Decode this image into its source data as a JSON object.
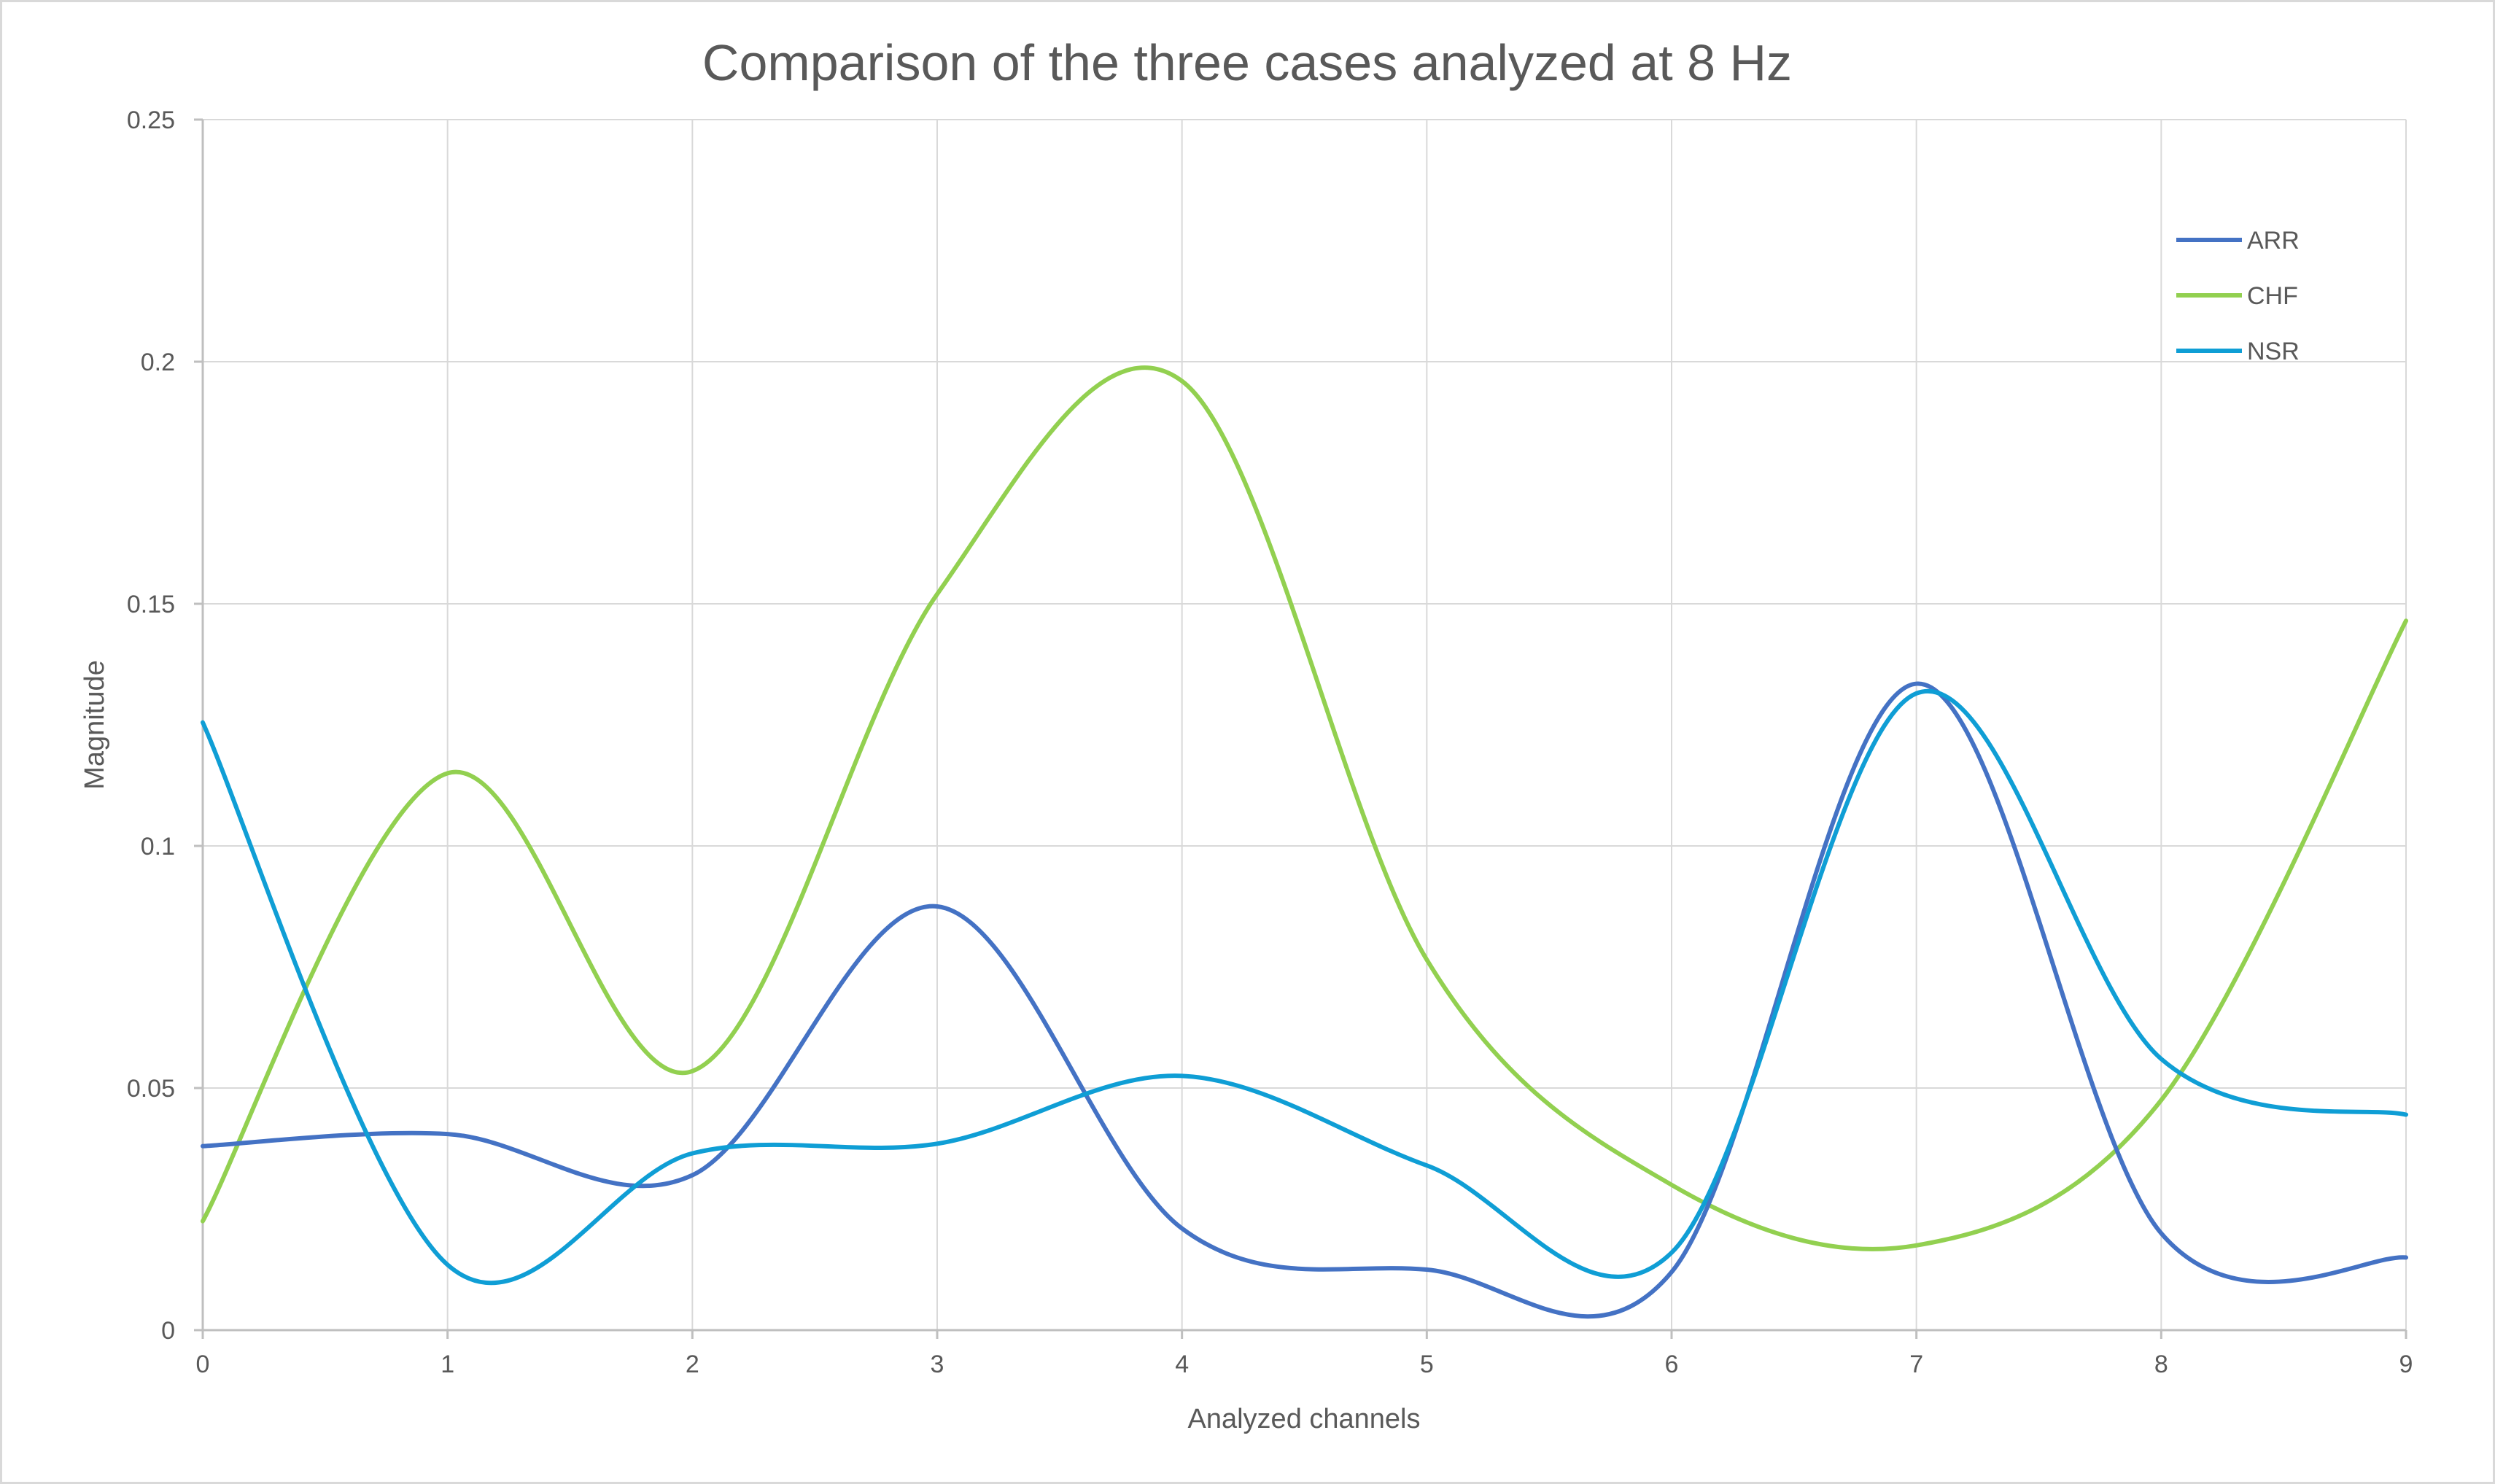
{
  "chart_data": {
    "type": "line",
    "title": "Comparison of the three cases analyzed at 8 Hz",
    "xlabel": "Analyzed channels",
    "ylabel": "Magnitude",
    "x": [
      0,
      1,
      2,
      3,
      4,
      5,
      6,
      7,
      8,
      9
    ],
    "x_tick_labels": [
      "0",
      "1",
      "2",
      "3",
      "4",
      "5",
      "6",
      "7",
      "8",
      "9"
    ],
    "xlim": [
      0,
      9
    ],
    "ylim": [
      0,
      0.25
    ],
    "y_ticks": [
      0,
      0.05,
      0.1,
      0.15,
      0.2,
      0.25
    ],
    "y_tick_labels": [
      "0",
      "0.05",
      "0.1",
      "0.15",
      "0.2",
      "0.25"
    ],
    "grid": true,
    "smooth": true,
    "legend_position": "top-right",
    "series": [
      {
        "name": "ARR",
        "color": "#4472c4",
        "values": [
          0.038,
          0.0405,
          0.032,
          0.0875,
          0.021,
          0.0125,
          0.012,
          0.1335,
          0.02,
          0.015
        ]
      },
      {
        "name": "CHF",
        "color": "#92d050",
        "values": [
          0.0225,
          0.115,
          0.0535,
          0.152,
          0.196,
          0.0765,
          0.03,
          0.0175,
          0.0475,
          0.1465
        ]
      },
      {
        "name": "NSR",
        "color": "#0f9ed5",
        "values": [
          0.1255,
          0.0135,
          0.0365,
          0.0385,
          0.0525,
          0.034,
          0.016,
          0.1315,
          0.056,
          0.0445
        ]
      }
    ]
  }
}
